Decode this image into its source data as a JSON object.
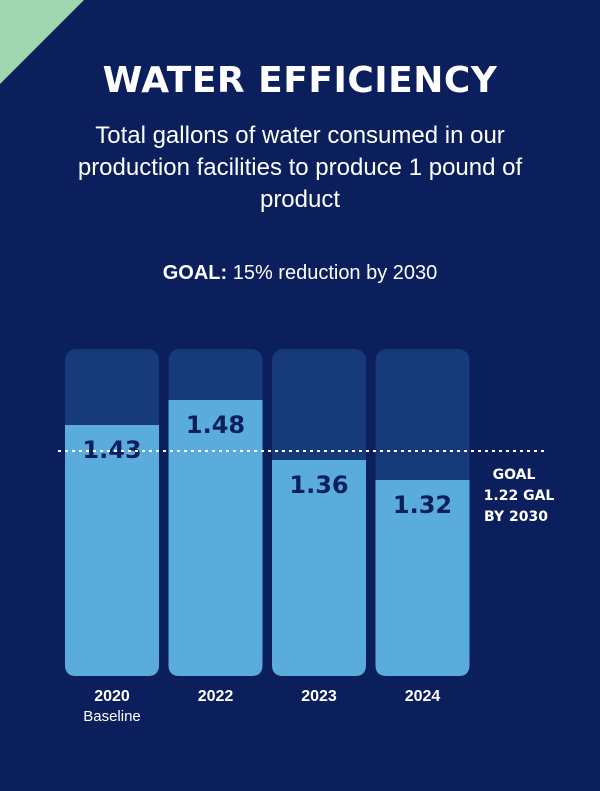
{
  "colors": {
    "background": "#0b1f5c",
    "bar_track": "#163a7a",
    "bar_fill": "#5aacdc",
    "corner": "#9fd6b0"
  },
  "header": {
    "title": "WATER EFFICIENCY",
    "subtitle": "Total gallons of water consumed in our production facilities to produce 1 pound of product",
    "goal_prefix": "GOAL:",
    "goal_text": " 15% reduction by 2030"
  },
  "chart_data": {
    "type": "bar",
    "categories": [
      "2020",
      "2022",
      "2023",
      "2024"
    ],
    "category_sublabels": [
      "Baseline",
      "",
      "",
      ""
    ],
    "values": [
      1.43,
      1.48,
      1.36,
      1.32
    ],
    "value_labels": [
      "1.43",
      "1.48",
      "1.36",
      "1.32"
    ],
    "target": {
      "value": 1.22,
      "label_lines": [
        "GOAL",
        "1.22 GAL",
        "BY 2030"
      ]
    },
    "title": "",
    "xlabel": "",
    "ylabel": "",
    "grid": false
  }
}
